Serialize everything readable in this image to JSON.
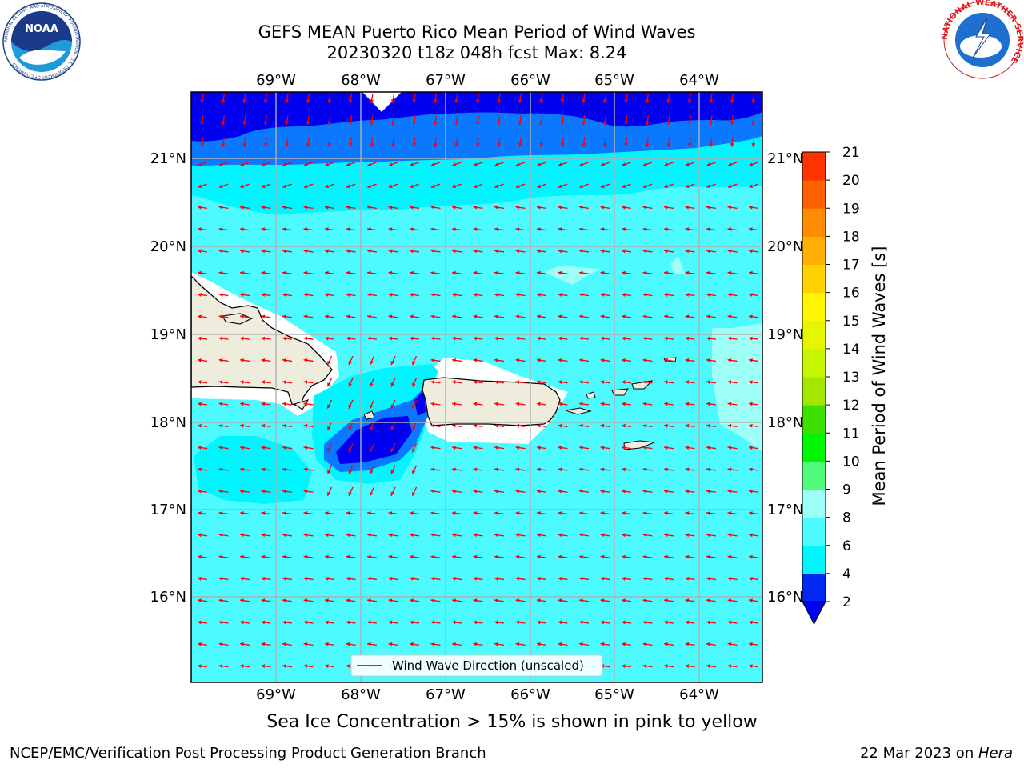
{
  "header": {
    "title_line1": "GEFS MEAN Puerto Rico Mean Period of Wind Waves",
    "title_line2": "20230320 t18z 048h fcst   Max: 8.24"
  },
  "logos": {
    "left": "NOAA",
    "left_ring_text": "NATIONAL OCEANIC AND ATMOSPHERIC ADMINISTRATION · U.S. DEPARTMENT OF COMMERCE",
    "right_ring_text": "NATIONAL WEATHER SERVICE"
  },
  "map": {
    "lon_labels": [
      "69°W",
      "68°W",
      "67°W",
      "66°W",
      "65°W",
      "64°W"
    ],
    "lat_labels": [
      "21°N",
      "20°N",
      "19°N",
      "18°N",
      "17°N",
      "16°N"
    ],
    "legend_label": "Wind Wave Direction (unscaled)",
    "arrow_color": "#ff0000",
    "land_color": "#eeecdc"
  },
  "colorbar": {
    "label": "Mean Period of Wind Waves [s]",
    "ticks": [
      "2",
      "4",
      "6",
      "8",
      "9",
      "10",
      "11",
      "12",
      "13",
      "14",
      "15",
      "16",
      "17",
      "18",
      "19",
      "20",
      "21"
    ],
    "colors": [
      "#0028f0",
      "#00f5ff",
      "#4dfaff",
      "#9dfff6",
      "#51fa7a",
      "#00f500",
      "#3ee000",
      "#a3e600",
      "#c6f500",
      "#e6f500",
      "#fff500",
      "#ffd200",
      "#ffb000",
      "#ff8c00",
      "#ff6000",
      "#ff3200",
      "#ff0000"
    ],
    "under_color": "#0000f0"
  },
  "notes": {
    "ice": "Sea Ice Concentration > 15% is shown in pink to yellow"
  },
  "footer": {
    "left": "NCEP/EMC/Verification Post Processing Product Generation Branch",
    "right_date": "22 Mar 2023 on ",
    "right_machine": "Hera"
  }
}
